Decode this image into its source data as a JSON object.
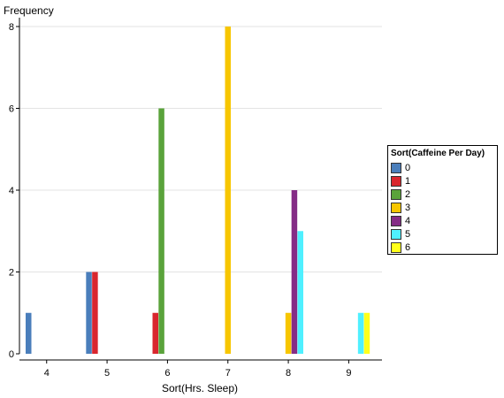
{
  "chart_data": {
    "type": "bar",
    "ylabel": "Frequency",
    "xlabel": "Sort(Hrs. Sleep)",
    "x_ticks": [
      "4",
      "5",
      "6",
      "7",
      "8",
      "9"
    ],
    "y_ticks": [
      "0",
      "2",
      "4",
      "6",
      "8"
    ],
    "ylim": [
      0,
      8
    ],
    "grid": "horizontal",
    "legend": {
      "title": "Sort(Caffeine Per Day)",
      "placement": "right",
      "items": [
        {
          "label": "0",
          "color": "#4a7ebb"
        },
        {
          "label": "1",
          "color": "#d9262e"
        },
        {
          "label": "2",
          "color": "#5aa33b"
        },
        {
          "label": "3",
          "color": "#f7c600"
        },
        {
          "label": "4",
          "color": "#852c86"
        },
        {
          "label": "5",
          "color": "#4ff0ff"
        },
        {
          "label": "6",
          "color": "#ffff1a"
        }
      ]
    },
    "bars": [
      {
        "x": 3.7,
        "caffeine": "0",
        "value": 1
      },
      {
        "x": 4.7,
        "caffeine": "0",
        "value": 2
      },
      {
        "x": 4.8,
        "caffeine": "1",
        "value": 2
      },
      {
        "x": 5.8,
        "caffeine": "1",
        "value": 1
      },
      {
        "x": 5.9,
        "caffeine": "2",
        "value": 6
      },
      {
        "x": 7.0,
        "caffeine": "3",
        "value": 8
      },
      {
        "x": 8.0,
        "caffeine": "3",
        "value": 1
      },
      {
        "x": 8.1,
        "caffeine": "4",
        "value": 4
      },
      {
        "x": 8.2,
        "caffeine": "5",
        "value": 3
      },
      {
        "x": 9.2,
        "caffeine": "5",
        "value": 1
      },
      {
        "x": 9.3,
        "caffeine": "6",
        "value": 1
      }
    ]
  }
}
